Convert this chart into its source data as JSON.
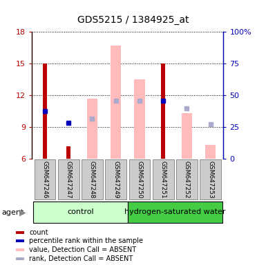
{
  "title": "GDS5215 / 1384925_at",
  "samples": [
    "GSM647246",
    "GSM647247",
    "GSM647248",
    "GSM647249",
    "GSM647250",
    "GSM647251",
    "GSM647252",
    "GSM647253"
  ],
  "ylim_left": [
    6,
    18
  ],
  "ylim_right": [
    0,
    100
  ],
  "yticks_left": [
    6,
    9,
    12,
    15,
    18
  ],
  "yticks_right": [
    0,
    25,
    50,
    75,
    100
  ],
  "yticklabels_right": [
    "0",
    "25",
    "50",
    "75",
    "100%"
  ],
  "red_bars": [
    15.0,
    7.2,
    null,
    null,
    null,
    15.0,
    null,
    null
  ],
  "blue_dots_y": [
    10.5,
    9.4,
    null,
    null,
    null,
    11.5,
    null,
    null
  ],
  "pink_bars": [
    null,
    null,
    11.7,
    16.7,
    13.5,
    null,
    10.3,
    7.3
  ],
  "light_blue_dots_y": [
    null,
    null,
    9.8,
    11.5,
    11.5,
    null,
    10.8,
    9.3
  ],
  "red_bar_width": 0.18,
  "pink_bar_width": 0.45,
  "red_color": "#bb0000",
  "blue_color": "#0000bb",
  "pink_color": "#ffbbbb",
  "light_blue_color": "#aaaacc",
  "control_bg": "#ccffcc",
  "hsw_bg": "#44cc44",
  "sample_bg": "#cccccc",
  "legend_items": [
    {
      "color": "#bb0000",
      "label": "count"
    },
    {
      "color": "#0000bb",
      "label": "percentile rank within the sample"
    },
    {
      "color": "#ffbbbb",
      "label": "value, Detection Call = ABSENT"
    },
    {
      "color": "#aaaacc",
      "label": "rank, Detection Call = ABSENT"
    }
  ],
  "title_fontsize": 10,
  "tick_fontsize": 8,
  "sample_fontsize": 6.5,
  "legend_fontsize": 7,
  "group_fontsize": 8
}
